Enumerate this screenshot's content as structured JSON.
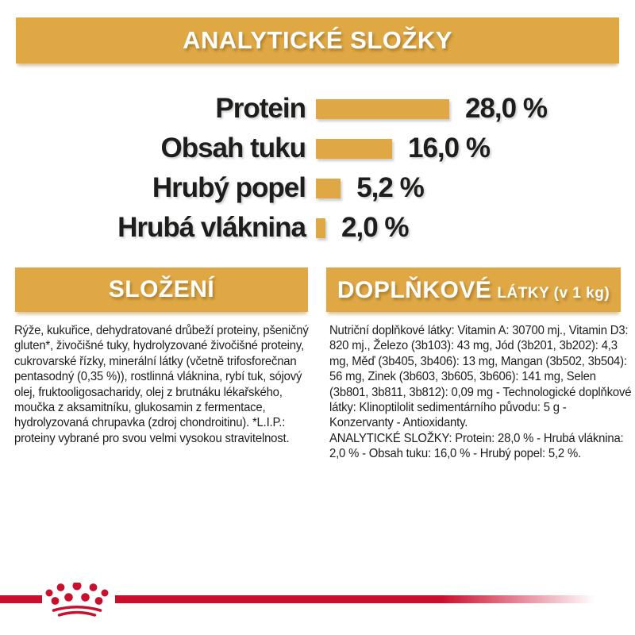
{
  "header": {
    "title": "ANALYTICKÉ SLOŽKY"
  },
  "chart_data": {
    "type": "bar",
    "orientation": "horizontal",
    "categories": [
      "Protein",
      "Obsah tuku",
      "Hrubý popel",
      "Hrubá vláknina"
    ],
    "values": [
      28.0,
      16.0,
      5.2,
      2.0
    ],
    "value_labels": [
      "28,0 %",
      "16,0 %",
      "5,2 %",
      "2,0 %"
    ],
    "unit": "%",
    "xlim": [
      0,
      28
    ],
    "bar_color": "#dfa845",
    "grid": false,
    "legend": false
  },
  "sections": {
    "slozeni": {
      "title": "SLOŽENÍ",
      "body": "Rýže, kukuřice, dehydratované drůbeží proteiny, pšeničný gluten*, živočišné tuky, hydrolyzované živočišné proteiny, cukrovarské řízky, minerální látky (včetně trifosforečnan pentasodný (0,35 %)), rostlinná vláknina, rybí tuk, sójový olej, fruktooligosacharidy, olej z brutnáku lékařského, moučka z aksamitníku, glukosamin z fermentace, hydrolyzovaná chrupavka (zdroj chondroitinu). *L.I.P.: proteiny vybrané pro svou velmi vysokou stravitelnost."
    },
    "doplnkove": {
      "title_main": "DOPLŇKOVÉ",
      "title_sub": "LÁTKY (v 1 kg)",
      "body": "Nutriční doplňkové látky: Vitamin A: 30700 mj., Vitamin D3: 820 mj., Železo (3b103): 43 mg, Jód (3b201, 3b202): 4,3 mg, Měď (3b405, 3b406): 13 mg, Mangan (3b502, 3b504): 56 mg, Zinek (3b603, 3b605, 3b606): 141 mg, Selen (3b801, 3b811, 3b812): 0,09 mg - Technologické doplňkové látky: Klinoptilolit sedimentárního původu: 5 g - Konzervanty - Antioxidanty.",
      "body2": "ANALYTICKÉ SLOŽKY: Protein: 28,0 % - Hrubá vláknina: 2,0 % - Obsah tuku: 16,0 % - Hrubý popel: 5,2 %."
    }
  },
  "footer": {
    "logo": "royal-canin-crown-logo"
  },
  "colors": {
    "gold": "#dfa845",
    "red": "#c8102e",
    "text": "#1d1d1b",
    "header_text": "#ffffff",
    "background": "#ffffff"
  }
}
